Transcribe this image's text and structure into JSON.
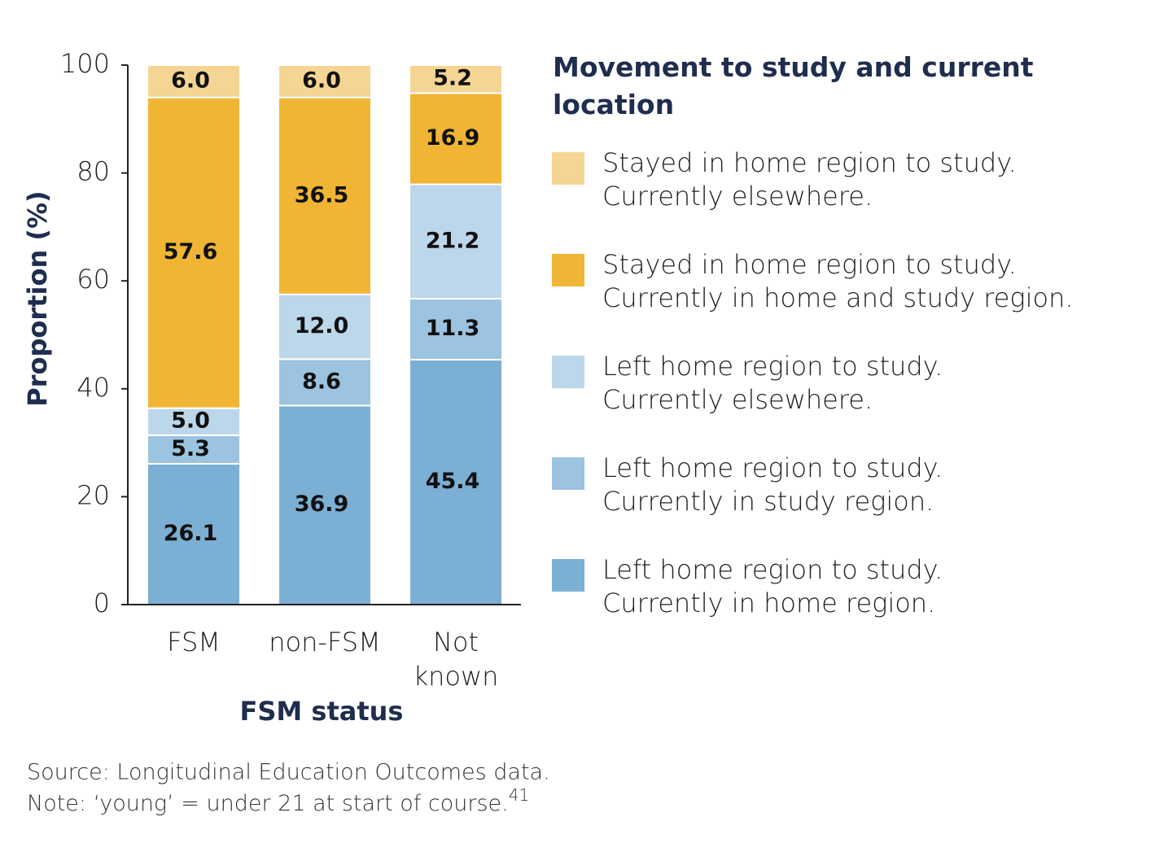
{
  "chart_data": {
    "type": "stacked-bar",
    "y_label": "Proportion (%)",
    "x_label": "FSM status",
    "legend_title": "Movement to study and current location",
    "categories": [
      "FSM",
      "non-FSM",
      "Not known"
    ],
    "ylim": [
      0,
      100
    ],
    "yticks": [
      0,
      20,
      40,
      60,
      80,
      100
    ],
    "series": [
      {
        "name": "Left home region to study. Currently in home region.",
        "color": "#7bafd4",
        "values": [
          26.1,
          36.9,
          45.4
        ],
        "value_labels": [
          "26.1",
          "36.9",
          "45.4"
        ]
      },
      {
        "name": "Left home region to study. Currently in study region.",
        "color": "#9cc3df",
        "values": [
          5.3,
          8.6,
          11.3
        ],
        "value_labels": [
          "5.3",
          "8.6",
          "11.3"
        ]
      },
      {
        "name": "Left home region to study. Currently elsewhere.",
        "color": "#bcd6ea",
        "values": [
          5.0,
          12.0,
          21.2
        ],
        "value_labels": [
          "5.0",
          "12.0",
          "21.2"
        ]
      },
      {
        "name": "Stayed in home region to study. Currently in home and study region.",
        "color": "#f0b535",
        "values": [
          57.6,
          36.5,
          16.9
        ],
        "value_labels": [
          "57.6",
          "36.5",
          "16.9"
        ]
      },
      {
        "name": "Stayed in home region to study. Currently elsewhere.",
        "color": "#f5d594",
        "values": [
          6.0,
          6.0,
          5.2
        ],
        "value_labels": [
          "6.0",
          "6.0",
          "5.2"
        ]
      }
    ],
    "source": "Source: Longitudinal Education Outcomes data.",
    "note": "Note: ‘young’ = under 21 at start of course.",
    "note_ref": "41"
  }
}
